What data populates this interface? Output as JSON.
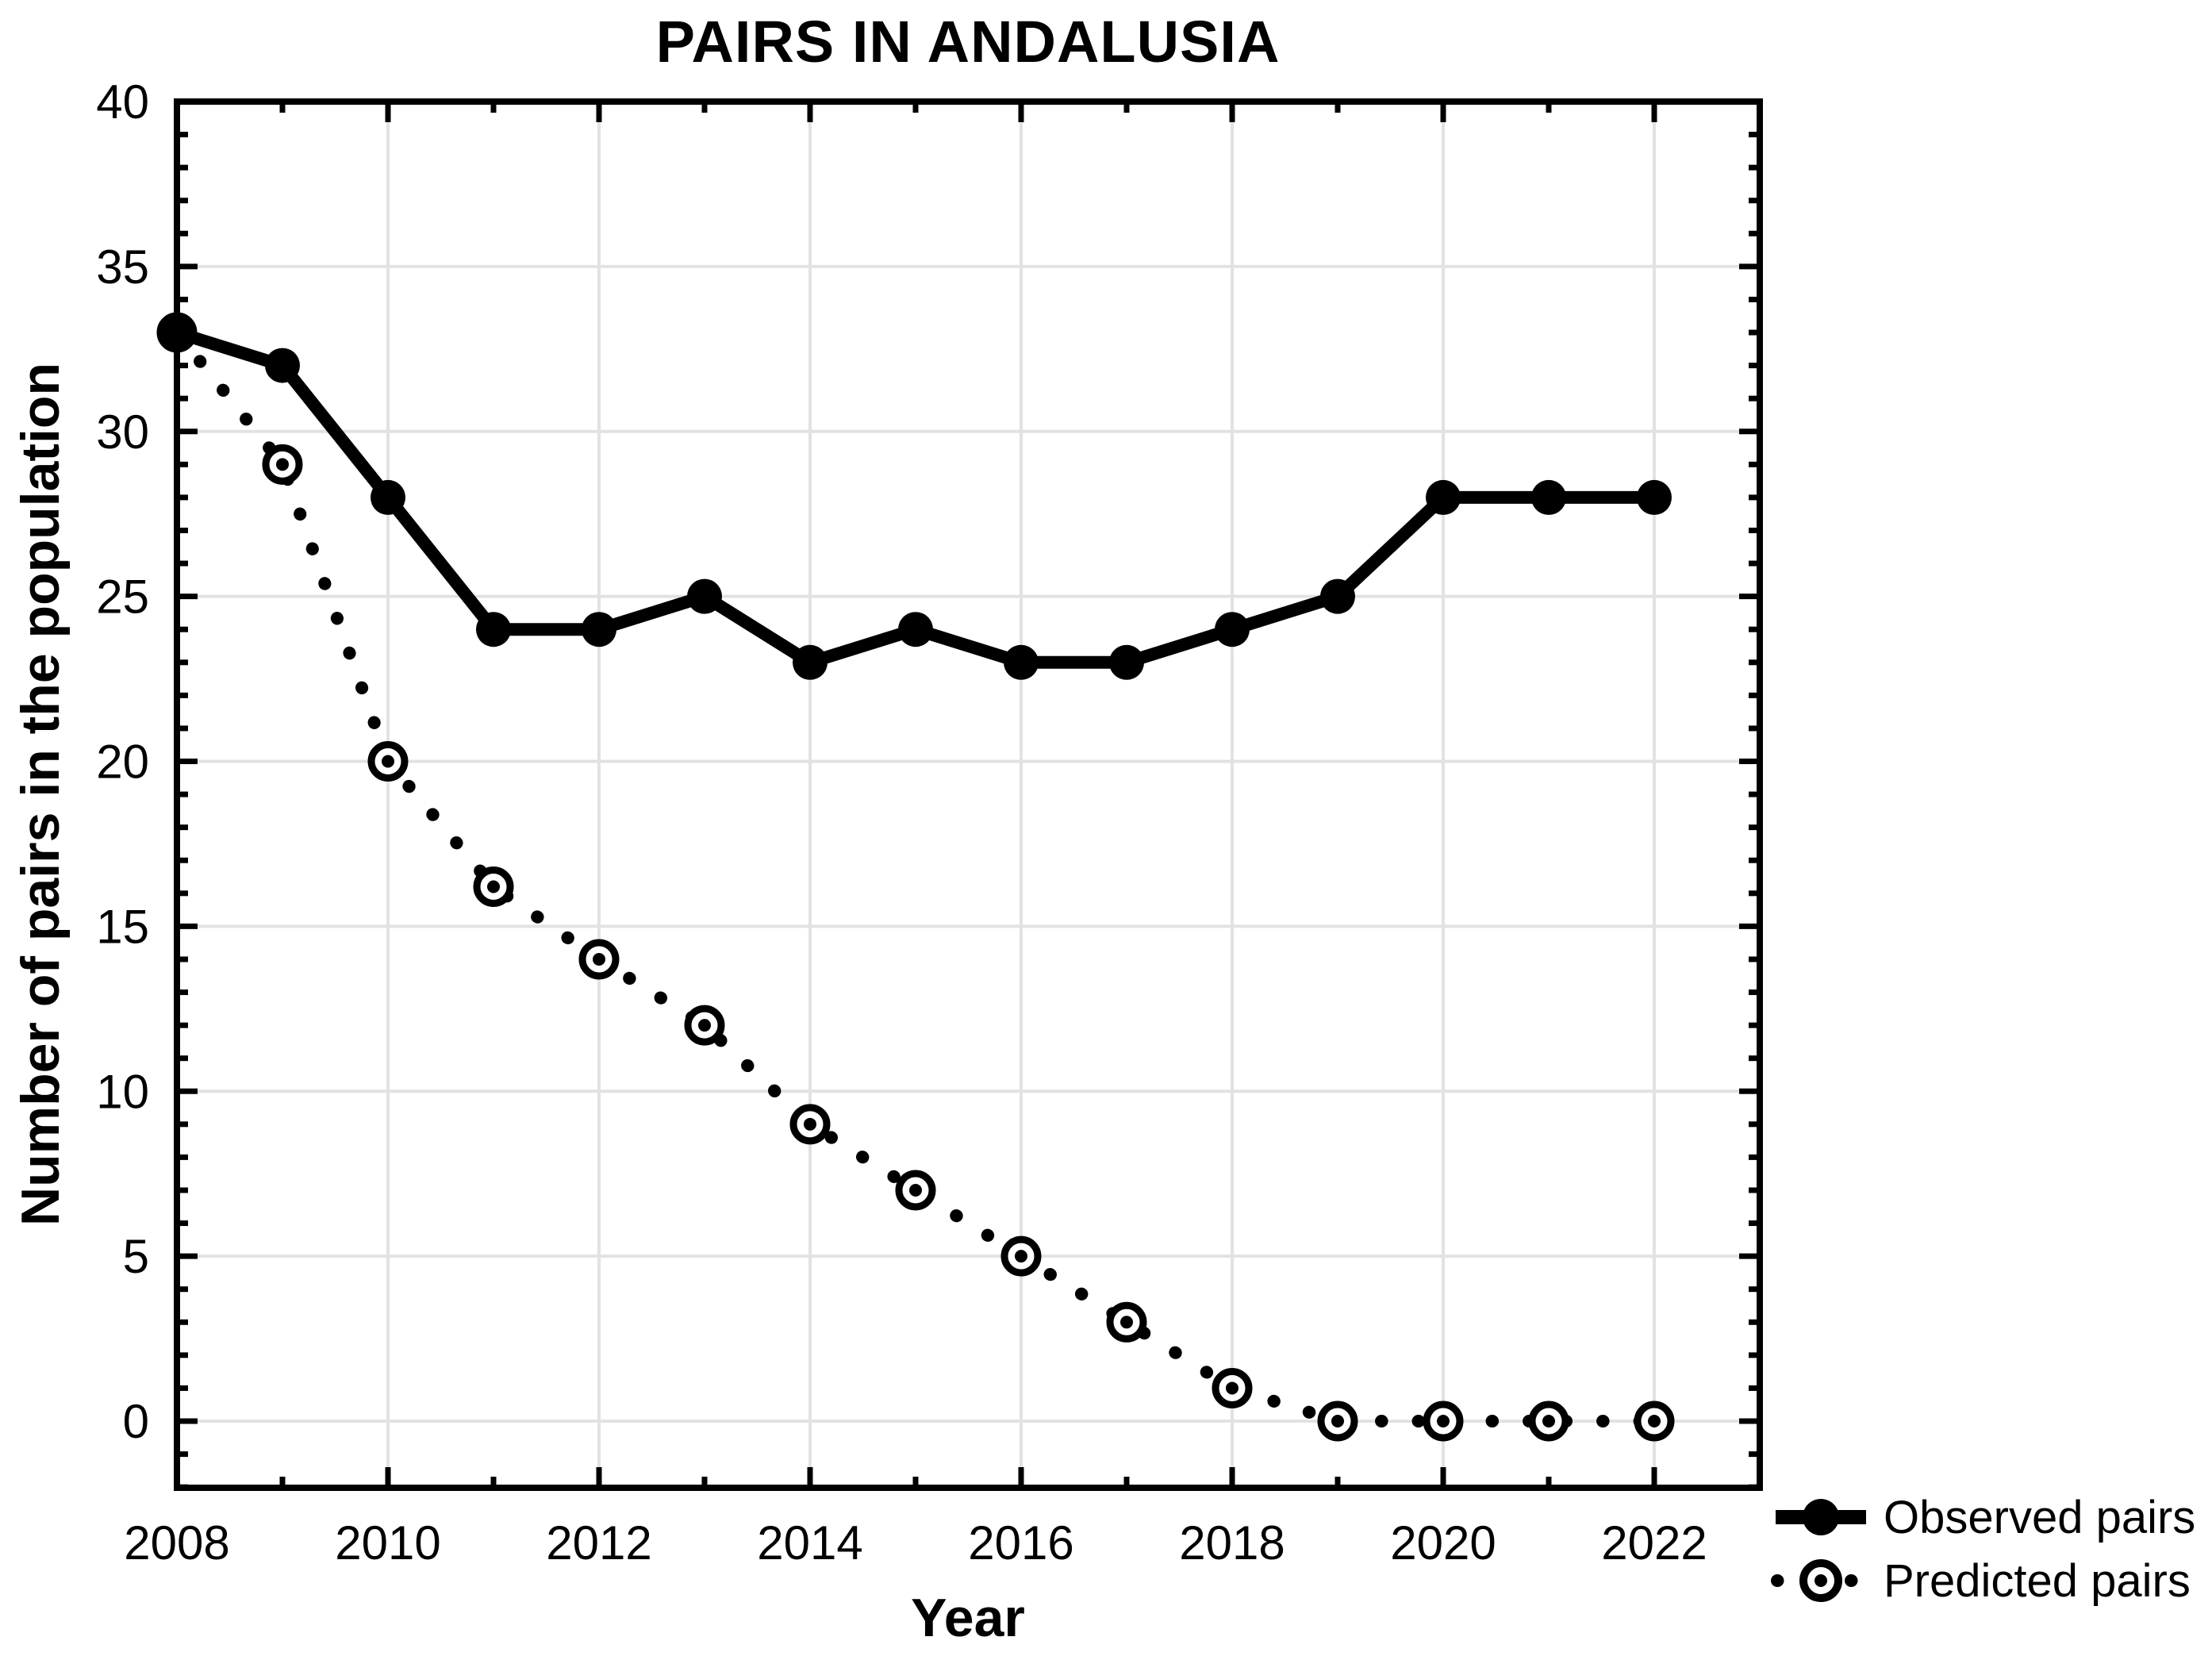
{
  "chart_data": {
    "type": "line",
    "title": "PAIRS IN ANDALUSIA",
    "xlabel": "Year",
    "ylabel": "Number of pairs in the population",
    "categories": [
      2008,
      2009,
      2010,
      2011,
      2012,
      2013,
      2014,
      2015,
      2016,
      2017,
      2018,
      2019,
      2020,
      2021,
      2022
    ],
    "series": [
      {
        "name": "Observed pairs",
        "line_style": "solid",
        "marker": "filled-circle",
        "values": [
          33,
          32,
          28,
          24,
          24,
          25,
          23,
          24,
          23,
          23,
          24,
          25,
          28,
          28,
          28
        ]
      },
      {
        "name": "Predicted pairs",
        "line_style": "dotted",
        "marker": "open-circle-dot",
        "values": [
          33,
          29,
          20,
          16.2,
          14,
          12,
          9,
          7,
          5,
          3,
          1,
          0,
          0,
          0,
          0
        ]
      }
    ],
    "x_tick_labels": [
      "2008",
      "2010",
      "2012",
      "2014",
      "2016",
      "2018",
      "2020",
      "2022"
    ],
    "y_tick_labels": [
      "0",
      "5",
      "10",
      "15",
      "20",
      "25",
      "30",
      "35",
      "40"
    ],
    "xlim": [
      2008,
      2023
    ],
    "ylim": [
      -2.02,
      40
    ],
    "x_minor_tick_step": 1,
    "y_minor_tick_step": 1,
    "grid": true,
    "legend_position": "bottom-right",
    "colors": {
      "series": "#000000",
      "grid": "#e2e2e2",
      "background": "#ffffff",
      "text": "#000000"
    }
  }
}
